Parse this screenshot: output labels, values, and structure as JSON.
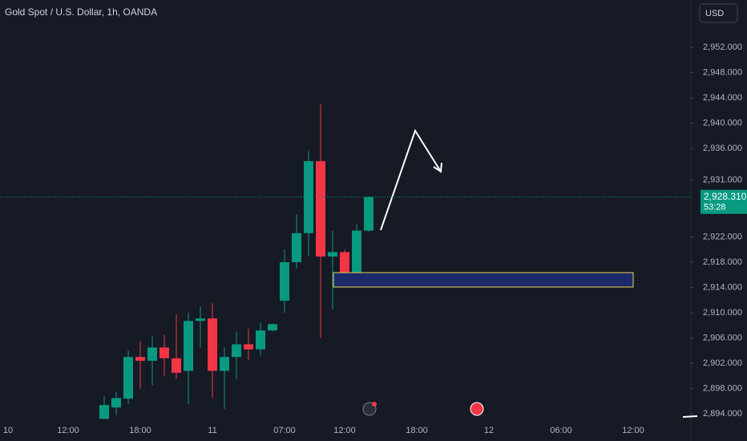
{
  "chart_data": {
    "type": "candlestick",
    "title": "Gold Spot / U.S. Dollar, 1h, OANDA",
    "currency": "USD",
    "categories": [
      "10",
      null,
      null,
      null,
      null,
      "12:00",
      null,
      null,
      null,
      null,
      null,
      "18:00",
      null,
      null,
      null,
      null,
      null,
      "11",
      null,
      null,
      null,
      null,
      null,
      "07:00",
      null,
      null,
      null,
      null,
      "12:00",
      null,
      null,
      null,
      null,
      null,
      "18:00",
      null,
      null,
      null,
      null,
      null,
      "12",
      null,
      null,
      null,
      null,
      null,
      "06:00",
      null,
      null,
      null,
      null,
      null,
      "12:00",
      null,
      null,
      null,
      null
    ],
    "open": [
      null,
      null,
      null,
      null,
      null,
      null,
      null,
      null,
      2893.2,
      2895,
      2896.4,
      2903,
      2902.4,
      2904.5,
      2902.8,
      2900.8,
      2908.7,
      2909.1,
      2900.8,
      2903,
      2905,
      2904.2,
      2907.2,
      2911.9,
      2918,
      2922.6,
      2934,
      2918.9,
      2919.6,
      2916.3,
      2923,
      null,
      null,
      null,
      null,
      null,
      null,
      null,
      null,
      null,
      null,
      null,
      null,
      null,
      null,
      null,
      null,
      null,
      null,
      null,
      null,
      null,
      null,
      null,
      null,
      null,
      null
    ],
    "high": [
      null,
      null,
      null,
      null,
      null,
      null,
      null,
      null,
      2896.8,
      2897.5,
      2904,
      2905.5,
      2906.3,
      2906.5,
      2909.8,
      2910,
      2911,
      2911.5,
      2904.5,
      2907,
      2907.5,
      2908.5,
      2908.3,
      2920,
      2925.6,
      2935.7,
      2943,
      2923,
      2920,
      2924,
      2928.4,
      null,
      null,
      null,
      null,
      null,
      null,
      null,
      null,
      null,
      null,
      null,
      null,
      null,
      null,
      null,
      null,
      null,
      null,
      null,
      null,
      null,
      null,
      null,
      null,
      null,
      null
    ],
    "low": [
      null,
      null,
      null,
      null,
      null,
      null,
      null,
      null,
      2893.2,
      2893.8,
      2895.6,
      2898,
      2898.5,
      2900,
      2899.5,
      2895.5,
      2904.5,
      2896.5,
      2894.8,
      2899.5,
      2902.5,
      2903.2,
      2907,
      2910,
      2917,
      2919,
      2906,
      2910.5,
      2914.5,
      2915,
      2922.8,
      null,
      null,
      null,
      null,
      null,
      null,
      null,
      null,
      null,
      null,
      null,
      null,
      null,
      null,
      null,
      null,
      null,
      null,
      null,
      null,
      null,
      null,
      null,
      null,
      null,
      null
    ],
    "close": [
      null,
      null,
      null,
      null,
      null,
      null,
      null,
      null,
      2895.4,
      2896.5,
      2903,
      2902.4,
      2904.5,
      2902.8,
      2900.5,
      2908.7,
      2909.1,
      2900.8,
      2903,
      2905,
      2904.2,
      2907.2,
      2908.2,
      2918,
      2922.6,
      2934,
      2918.9,
      2919.6,
      2916.3,
      2923,
      2928.31,
      null,
      null,
      null,
      null,
      null,
      null,
      null,
      null,
      null,
      null,
      null,
      null,
      null,
      null,
      null,
      null,
      null,
      null,
      null,
      null,
      null,
      null,
      null,
      null,
      null,
      null
    ],
    "up_color": "#089981",
    "down_color": "#f23645",
    "ylim": [
      2889.7,
      2959.5
    ],
    "yticks": [
      {
        "value": 2952,
        "label": "2,952.000"
      },
      {
        "value": 2948,
        "label": "2,948.000"
      },
      {
        "value": 2944,
        "label": "2,944.000"
      },
      {
        "value": 2940,
        "label": "2,940.000"
      },
      {
        "value": 2936,
        "label": "2,936.000"
      },
      {
        "value": 2931,
        "label": "2,931.000"
      },
      {
        "value": 2922,
        "label": "2,922.000"
      },
      {
        "value": 2918,
        "label": "2,918.000"
      },
      {
        "value": 2914,
        "label": "2,914.000"
      },
      {
        "value": 2910,
        "label": "2,910.000"
      },
      {
        "value": 2906,
        "label": "2,906.000"
      },
      {
        "value": 2902,
        "label": "2,902.000"
      },
      {
        "value": 2898,
        "label": "2,898.000"
      },
      {
        "value": 2894,
        "label": "2,894.000"
      }
    ],
    "last_price": {
      "value": 2928.31,
      "label": "2,928.310"
    },
    "countdown": "53:28"
  }
}
